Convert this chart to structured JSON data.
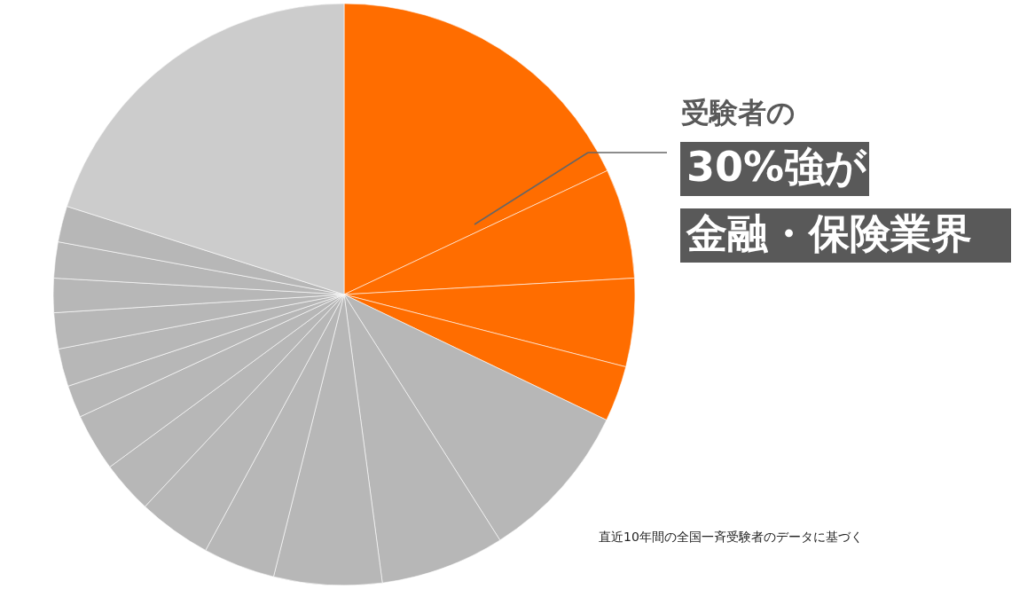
{
  "chart_data": {
    "type": "pie",
    "categories": [
      null,
      null,
      null,
      null,
      null,
      null,
      null,
      null,
      null,
      null,
      null,
      null,
      null,
      null,
      null,
      null,
      null,
      null
    ],
    "values": [
      18.0,
      6.1,
      4.9,
      3.1,
      8.9,
      6.9,
      6.0,
      4.0,
      4.1,
      2.9,
      3.2,
      1.8,
      2.1,
      2.0,
      1.9,
      2.0,
      2.0,
      20.1
    ],
    "colors": [
      "#ff6d00",
      "#ff6d00",
      "#ff6d00",
      "#ff6d00",
      "#b7b7b7",
      "#b7b7b7",
      "#b7b7b7",
      "#b7b7b7",
      "#b7b7b7",
      "#b7b7b7",
      "#b7b7b7",
      "#b7b7b7",
      "#b7b7b7",
      "#b7b7b7",
      "#b7b7b7",
      "#b7b7b7",
      "#b7b7b7",
      "#cccccc"
    ],
    "annotations": [
      "受験者の",
      "30%強が",
      "金融・保険業界",
      "直近10年間の全国一斉受験者のデータに基づく"
    ]
  }
}
